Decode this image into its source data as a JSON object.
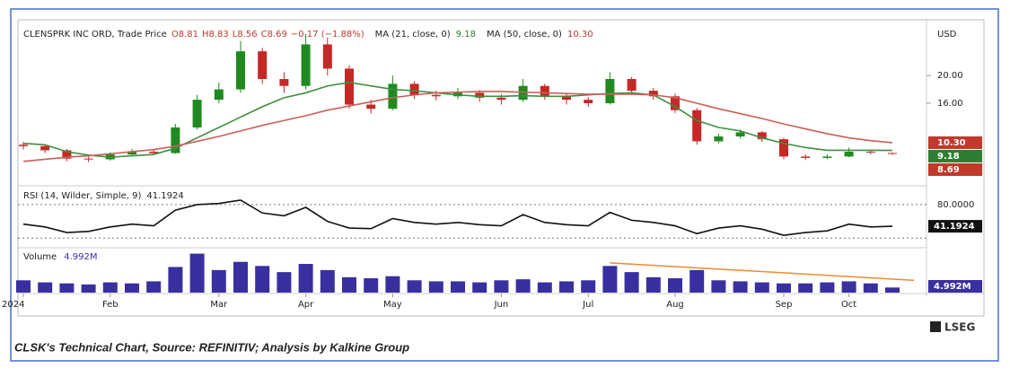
{
  "chart_data": {
    "type": "candlestick",
    "instrument": "CLENSPRK INC ORD, Trade Price",
    "quote": [
      "O8.81",
      "H8.83",
      "L8.56",
      "C8.69",
      "−0.17 (−1.88%)"
    ],
    "currency": "USD",
    "categories": [
      "2024",
      null,
      null,
      null,
      "Feb",
      null,
      null,
      null,
      null,
      "Mar",
      null,
      null,
      null,
      "Apr",
      null,
      null,
      null,
      "May",
      null,
      null,
      null,
      null,
      "Jun",
      null,
      null,
      null,
      "Jul",
      null,
      null,
      null,
      "Aug",
      null,
      null,
      null,
      null,
      "Sep",
      null,
      null,
      "Oct",
      null,
      null
    ],
    "open": [
      10.0,
      9.8,
      9.2,
      8.0,
      7.9,
      8.6,
      9.0,
      8.8,
      12.5,
      16.5,
      18.0,
      23.5,
      19.5,
      18.5,
      24.5,
      21.0,
      15.8,
      15.2,
      18.8,
      17.2,
      17.0,
      17.5,
      16.8,
      16.5,
      18.5,
      17.0,
      16.5,
      16.0,
      19.5,
      17.8,
      17.0,
      15.0,
      10.5,
      11.2,
      11.8,
      10.8,
      8.3,
      8.1,
      8.3,
      9.0,
      8.81
    ],
    "high": [
      10.4,
      10.1,
      9.4,
      8.5,
      8.9,
      9.4,
      9.3,
      13.0,
      17.2,
      19.0,
      25.0,
      24.0,
      20.5,
      26.0,
      25.5,
      21.5,
      16.5,
      20.0,
      19.2,
      17.8,
      18.2,
      17.9,
      17.3,
      19.5,
      18.8,
      17.5,
      16.9,
      20.5,
      19.8,
      18.2,
      17.4,
      15.3,
      11.6,
      12.2,
      12.0,
      11.0,
      8.6,
      8.6,
      9.6,
      9.3,
      8.83
    ],
    "low": [
      9.3,
      8.8,
      7.6,
      7.5,
      7.7,
      8.4,
      8.5,
      8.7,
      12.2,
      16.0,
      17.5,
      18.8,
      17.5,
      18.0,
      20.0,
      15.2,
      14.5,
      15.0,
      16.6,
      16.4,
      16.6,
      16.2,
      15.8,
      16.2,
      16.5,
      15.8,
      15.5,
      15.8,
      17.2,
      16.5,
      14.6,
      10.0,
      10.2,
      10.9,
      10.4,
      7.9,
      7.8,
      7.9,
      8.2,
      8.6,
      8.56
    ],
    "close": [
      9.8,
      9.2,
      8.0,
      7.9,
      8.6,
      9.0,
      8.8,
      12.5,
      16.5,
      18.0,
      23.5,
      19.5,
      18.5,
      24.5,
      21.0,
      15.8,
      15.2,
      18.8,
      17.2,
      17.0,
      17.5,
      16.8,
      16.5,
      18.5,
      17.0,
      16.5,
      16.0,
      19.5,
      17.8,
      17.0,
      15.0,
      10.5,
      11.2,
      11.8,
      10.8,
      8.3,
      8.1,
      8.3,
      9.0,
      8.9,
      8.69
    ],
    "up_color": "#1f8a1f",
    "down_color": "#c62828",
    "series": [
      {
        "name": "MA (21, close, 0)",
        "color": "#3f8f3f",
        "last_label": "9.18",
        "values": [
          10.2,
          10.0,
          9.0,
          8.5,
          8.2,
          8.4,
          8.6,
          9.5,
          11.0,
          12.5,
          14.0,
          15.5,
          16.8,
          17.5,
          18.5,
          19.0,
          18.5,
          18.0,
          17.8,
          17.5,
          17.2,
          17.0,
          17.0,
          17.1,
          17.0,
          17.0,
          17.2,
          17.4,
          17.5,
          17.2,
          15.5,
          13.5,
          12.5,
          12.0,
          11.0,
          10.2,
          9.6,
          9.2,
          9.2,
          9.2,
          9.18
        ]
      },
      {
        "name": "MA (50, close, 0)",
        "color": "#c8605a",
        "last_label": "10.30",
        "values": [
          7.6,
          7.9,
          8.2,
          8.4,
          8.7,
          9.0,
          9.3,
          9.8,
          10.5,
          11.2,
          12.0,
          12.8,
          13.5,
          14.2,
          15.0,
          15.6,
          16.2,
          16.8,
          17.2,
          17.5,
          17.6,
          17.7,
          17.7,
          17.6,
          17.5,
          17.4,
          17.3,
          17.3,
          17.3,
          17.2,
          16.8,
          16.0,
          15.2,
          14.5,
          13.8,
          13.0,
          12.3,
          11.6,
          11.0,
          10.6,
          10.3
        ]
      }
    ],
    "price_tags": [
      {
        "value": 10.3,
        "label": "10.30",
        "color": "#c0392b"
      },
      {
        "value": 9.18,
        "label": "9.18",
        "color": "#2e7d32"
      },
      {
        "value": 8.69,
        "label": "8.69",
        "color": "#c0392b"
      }
    ],
    "ylim": [
      4.2,
      27.8
    ],
    "yticks": [
      {
        "value": 16,
        "label": "16.00"
      },
      {
        "value": 20,
        "label": "20.00"
      }
    ],
    "rsi": {
      "name": "RSI (14, Wilder, Simple, 9)",
      "color": "#111111",
      "values": [
        45,
        40,
        30,
        32,
        40,
        45,
        42,
        70,
        80,
        82,
        88,
        65,
        60,
        75,
        50,
        38,
        37,
        55,
        48,
        45,
        48,
        44,
        42,
        62,
        48,
        44,
        42,
        66,
        52,
        48,
        42,
        28,
        38,
        42,
        36,
        25,
        30,
        33,
        45,
        40,
        41.1924
      ],
      "last_label": "41.1924",
      "ylim": [
        6,
        112
      ],
      "yticks": [
        {
          "value": 80,
          "label": "80.0000"
        }
      ],
      "levels": [
        80,
        20
      ]
    },
    "volume": {
      "name": "Volume",
      "color": "#3a2fa0",
      "values": [
        12,
        10,
        9,
        8,
        10,
        9,
        11,
        25,
        38,
        22,
        30,
        26,
        20,
        28,
        22,
        15,
        14,
        16,
        12,
        11,
        11,
        10,
        12,
        13,
        10,
        11,
        12,
        26,
        20,
        15,
        14,
        22,
        12,
        11,
        10,
        9,
        9,
        10,
        11,
        9,
        4.992
      ],
      "last_label": "4.992M",
      "ylim": [
        0,
        42
      ],
      "trendline": {
        "x": [
          27,
          41
        ],
        "y": [
          29,
          12
        ],
        "color": "#f08a30"
      }
    }
  },
  "caption": "CLSK's Technical Chart, Source: REFINITIV; Analysis by Kalkine Group",
  "logo": "LSEG"
}
